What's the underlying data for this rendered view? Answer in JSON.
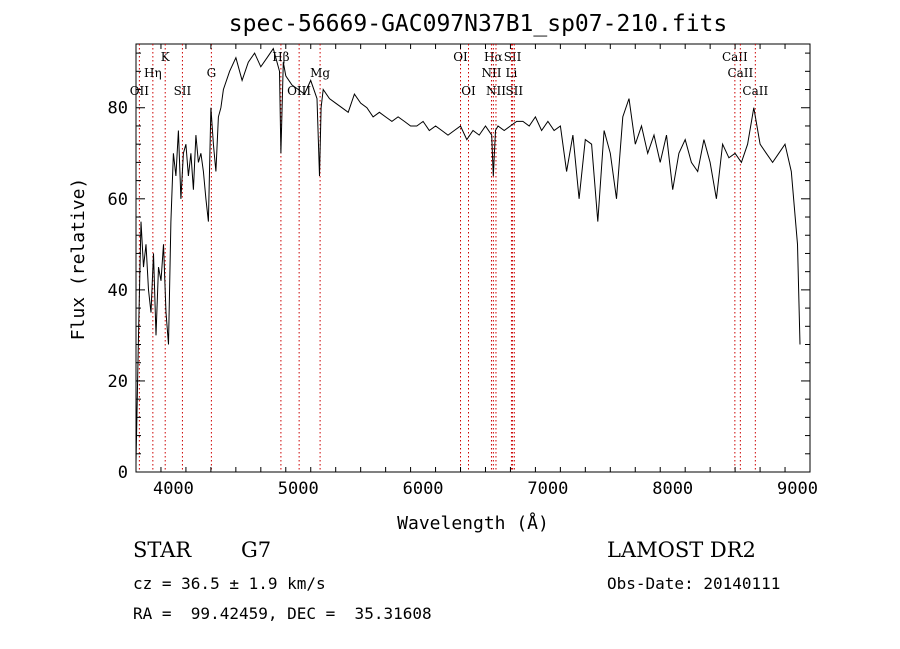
{
  "title": "spec-56669-GAC097N37B1_sp07-210.fits",
  "info": {
    "class_label": "STAR",
    "subclass_label": "G7",
    "survey_label": "LAMOST DR2",
    "redshift_text": "cz = 36.5 ± 1.9 km/s",
    "obs_date_text": "Obs-Date: 20140111",
    "coords_text": "RA =  99.42459, DEC =  35.31608"
  },
  "chart_data": {
    "type": "line",
    "title": "spec-56669-GAC097N37B1_sp07-210.fits",
    "xlabel": "Wavelength (Å)",
    "ylabel": "Flux (relative)",
    "xlim": [
      3700,
      9100
    ],
    "ylim": [
      0,
      94
    ],
    "xticks": [
      4000,
      5000,
      6000,
      7000,
      8000,
      9000
    ],
    "yticks": [
      0,
      20,
      40,
      60,
      80
    ],
    "grid": false,
    "line_color": "#000000",
    "marker_color": "#cc0000",
    "series": [
      {
        "x": [
          3700,
          3720,
          3740,
          3760,
          3780,
          3800,
          3820,
          3840,
          3860,
          3880,
          3900,
          3920,
          3940,
          3960,
          3980,
          4000,
          4020,
          4040,
          4060,
          4080,
          4100,
          4120,
          4140,
          4160,
          4180,
          4200,
          4220,
          4240,
          4260,
          4280,
          4300,
          4320,
          4340,
          4360,
          4380,
          4400,
          4450,
          4500,
          4550,
          4600,
          4650,
          4700,
          4750,
          4800,
          4850,
          4861,
          4880,
          4900,
          4950,
          5000,
          5050,
          5100,
          5150,
          5170,
          5183,
          5200,
          5250,
          5300,
          5350,
          5400,
          5450,
          5500,
          5550,
          5600,
          5650,
          5700,
          5750,
          5800,
          5850,
          5900,
          5950,
          6000,
          6050,
          6100,
          6150,
          6200,
          6250,
          6300,
          6350,
          6400,
          6450,
          6500,
          6550,
          6563,
          6580,
          6600,
          6650,
          6700,
          6750,
          6800,
          6850,
          6900,
          6950,
          7000,
          7050,
          7100,
          7150,
          7200,
          7250,
          7300,
          7350,
          7400,
          7450,
          7500,
          7550,
          7600,
          7650,
          7700,
          7750,
          7800,
          7850,
          7900,
          7950,
          8000,
          8050,
          8100,
          8150,
          8200,
          8250,
          8300,
          8350,
          8400,
          8450,
          8500,
          8550,
          8600,
          8650,
          8700,
          8750,
          8800,
          8850,
          8900,
          8950,
          9000,
          9020
        ],
        "y": [
          2,
          30,
          55,
          45,
          50,
          40,
          35,
          48,
          30,
          45,
          42,
          50,
          35,
          28,
          55,
          70,
          65,
          75,
          60,
          70,
          72,
          65,
          70,
          62,
          74,
          68,
          70,
          66,
          60,
          55,
          80,
          72,
          66,
          78,
          80,
          84,
          88,
          91,
          86,
          90,
          92,
          89,
          91,
          93,
          88,
          70,
          90,
          87,
          85,
          84,
          83,
          86,
          82,
          65,
          80,
          84,
          82,
          81,
          80,
          79,
          83,
          81,
          80,
          78,
          79,
          78,
          77,
          78,
          77,
          76,
          76,
          77,
          75,
          76,
          75,
          74,
          75,
          76,
          73,
          75,
          74,
          76,
          74,
          65,
          75,
          76,
          75,
          76,
          77,
          77,
          76,
          78,
          75,
          77,
          75,
          76,
          66,
          74,
          60,
          73,
          72,
          55,
          75,
          70,
          60,
          78,
          82,
          72,
          76,
          70,
          74,
          68,
          74,
          62,
          70,
          73,
          68,
          66,
          73,
          68,
          60,
          72,
          69,
          70,
          68,
          72,
          80,
          72,
          70,
          68,
          70,
          72,
          66,
          50,
          28
        ]
      }
    ],
    "line_markers": [
      {
        "label": "OII",
        "x": 3727,
        "row": 3
      },
      {
        "label": "Hη",
        "x": 3835,
        "row": 2
      },
      {
        "label": "K",
        "x": 3934,
        "row": 1
      },
      {
        "label": "SII",
        "x": 4072,
        "row": 3
      },
      {
        "label": "G",
        "x": 4304,
        "row": 2
      },
      {
        "label": "Hβ",
        "x": 4861,
        "row": 1
      },
      {
        "label": "OIII",
        "x": 5007,
        "row": 3
      },
      {
        "label": "Mg",
        "x": 5175,
        "row": 2
      },
      {
        "label": "OI",
        "x": 6300,
        "row": 1
      },
      {
        "label": "OI",
        "x": 6364,
        "row": 3
      },
      {
        "label": "Hα",
        "x": 6563,
        "row": 1
      },
      {
        "label": "NII",
        "x": 6548,
        "row": 2
      },
      {
        "label": "NII",
        "x": 6584,
        "row": 3
      },
      {
        "label": "SII",
        "x": 6717,
        "row": 1
      },
      {
        "label": "Li",
        "x": 6708,
        "row": 2
      },
      {
        "label": "SII",
        "x": 6731,
        "row": 3
      },
      {
        "label": "CaII",
        "x": 8498,
        "row": 1
      },
      {
        "label": "CaII",
        "x": 8542,
        "row": 2
      },
      {
        "label": "CaII",
        "x": 8662,
        "row": 3
      }
    ]
  }
}
